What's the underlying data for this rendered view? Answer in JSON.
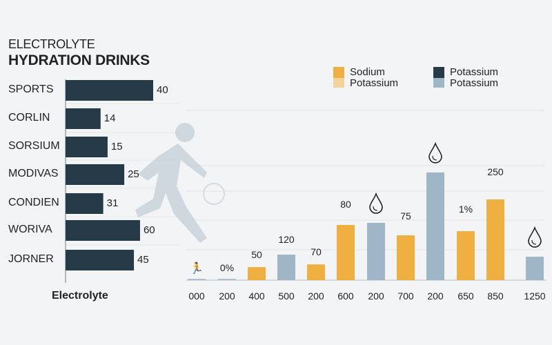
{
  "title_line1": "ELECTROLYTE",
  "title_line2": "HYDRATION DRINKS",
  "colors": {
    "dark": "#263a48",
    "orange": "#f0b041",
    "light_orange": "#f3d39a",
    "blue": "#9fb6c6",
    "background": "#f3f4f5"
  },
  "legend": [
    {
      "line1": "Sodium",
      "line2": "Potassium",
      "color_top": "#f0b041",
      "color_bottom": "#f3d39a"
    },
    {
      "line1": "Potassium",
      "line2": "Potassium",
      "color_top": "#263a48",
      "color_bottom": "#9fb6c6"
    }
  ],
  "chart_data": [
    {
      "type": "bar",
      "orientation": "horizontal",
      "categories": [
        "SPORTS",
        "CORLIN",
        "SORSIUM",
        "MODIVAS",
        "CONDIEN",
        "WORIVA",
        "JORNER"
      ],
      "labels": [
        "40",
        "14",
        "15",
        "25",
        "31",
        "60",
        "45"
      ],
      "relative_lengths": [
        1.0,
        0.4,
        0.48,
        0.67,
        0.43,
        0.85,
        0.78
      ],
      "grid": false
    },
    {
      "type": "bar",
      "xlabel": "Electrolyte",
      "categories": [
        "000",
        "200",
        "400",
        "500",
        "200",
        "600",
        "200",
        "700",
        "200",
        "650",
        "850",
        "1250"
      ],
      "values": [
        0,
        0,
        0.44,
        0.86,
        0.53,
        1.86,
        1.93,
        1.51,
        3.63,
        1.65,
        2.72,
        0.79
      ],
      "series_color": [
        "none",
        "none",
        "orange",
        "blue",
        "orange",
        "orange",
        "blue",
        "orange",
        "blue",
        "orange",
        "orange",
        "blue"
      ],
      "annotations": [
        "runner-icon",
        "0%",
        "50",
        "120",
        "70",
        "80",
        "drop-icon",
        "75",
        "drop-icon",
        "1%",
        "250",
        "drop-icon"
      ],
      "grid": true
    }
  ]
}
